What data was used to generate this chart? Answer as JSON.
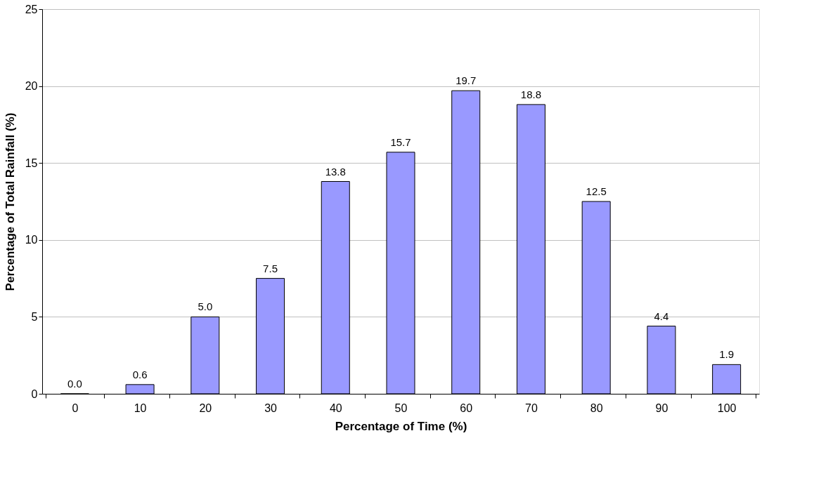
{
  "chart_data": {
    "type": "bar",
    "xlabel": "Percentage of Time (%)",
    "ylabel": "Percentage of Total Rainfall (%)",
    "categories": [
      "0",
      "10",
      "20",
      "30",
      "40",
      "50",
      "60",
      "70",
      "80",
      "90",
      "100"
    ],
    "values": [
      0.0,
      0.6,
      5.0,
      7.5,
      13.8,
      15.7,
      19.7,
      18.8,
      12.5,
      4.4,
      1.9
    ],
    "value_labels": [
      "0.0",
      "0.6",
      "5.0",
      "7.5",
      "13.8",
      "15.7",
      "19.7",
      "18.8",
      "12.5",
      "4.4",
      "1.9"
    ],
    "color": "#9999ff",
    "ylim": [
      0,
      25
    ],
    "yticks": [
      0,
      5,
      10,
      15,
      20,
      25
    ],
    "grid": "y"
  }
}
